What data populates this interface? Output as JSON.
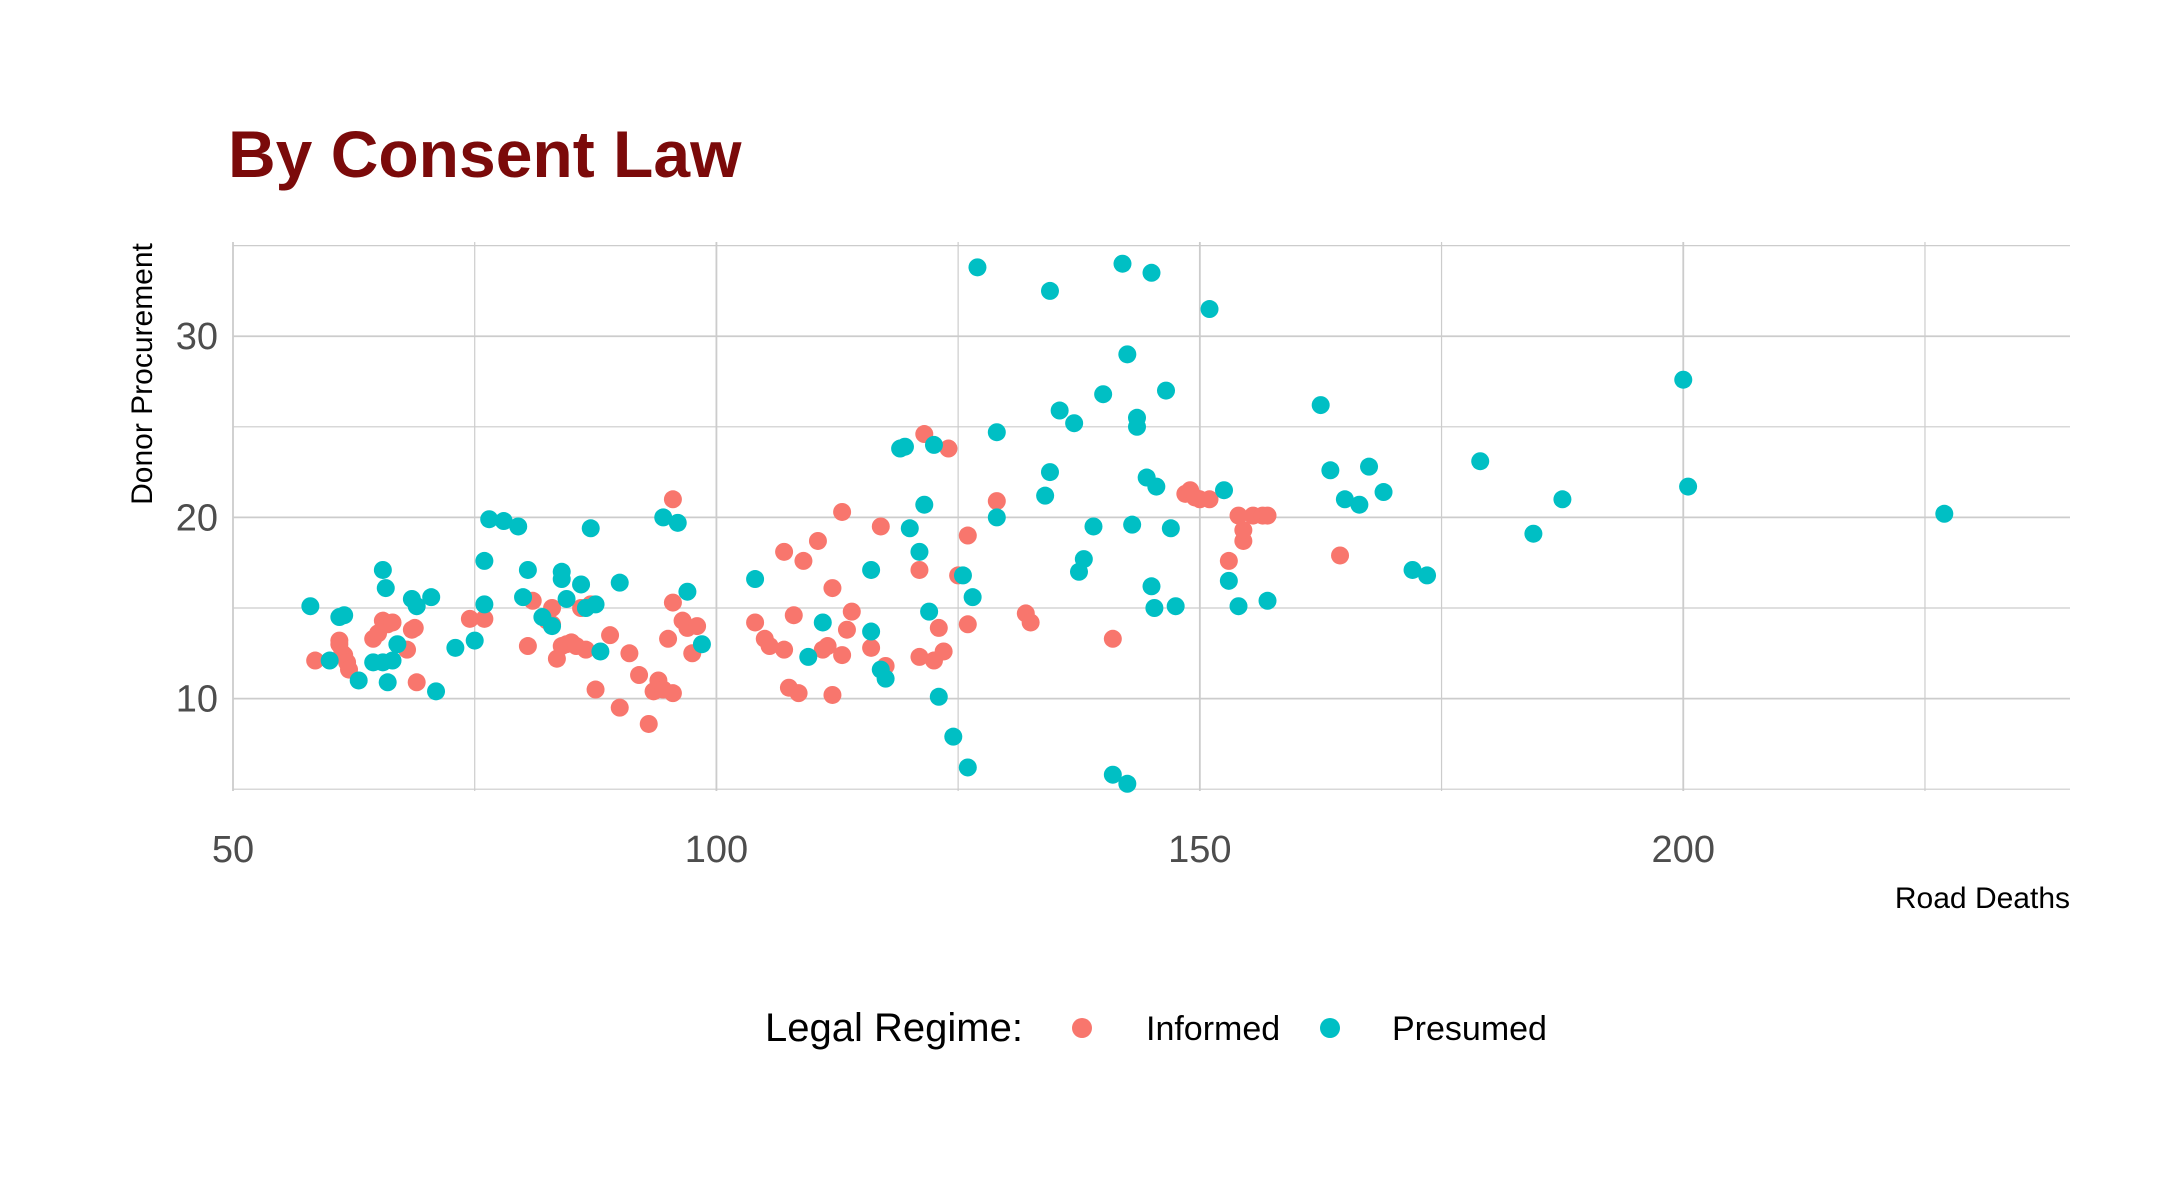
{
  "chart_data": {
    "type": "scatter",
    "title": "By Consent Law",
    "xlabel": "Road Deaths",
    "ylabel": "Donor Procurement",
    "xlim": [
      50,
      240
    ],
    "ylim": [
      4.9,
      35.2
    ],
    "x_major_ticks": [
      50,
      100,
      150,
      200
    ],
    "x_minor_ticks": [
      75,
      125,
      175,
      225
    ],
    "y_major_ticks": [
      10,
      20,
      30
    ],
    "y_minor_ticks": [
      5,
      15,
      25,
      35
    ],
    "grid": true,
    "legend": {
      "title": "Legal Regime:",
      "position": "bottom"
    },
    "colors": {
      "title": "#7b0a0a",
      "grid": "#cccccc",
      "Informed": "#f8766d",
      "Presumed": "#00bfc4"
    },
    "series": [
      {
        "name": "Informed",
        "points": [
          [
            58.5,
            12.1
          ],
          [
            61.0,
            13.0
          ],
          [
            61.0,
            13.2
          ],
          [
            61.3,
            12.5
          ],
          [
            61.5,
            12.4
          ],
          [
            61.8,
            12.0
          ],
          [
            62.0,
            11.6
          ],
          [
            64.5,
            13.3
          ],
          [
            65.0,
            13.6
          ],
          [
            65.5,
            14.3
          ],
          [
            66.0,
            14.1
          ],
          [
            66.5,
            14.2
          ],
          [
            68.0,
            12.7
          ],
          [
            68.5,
            13.8
          ],
          [
            68.8,
            13.9
          ],
          [
            69.0,
            10.9
          ],
          [
            74.5,
            14.4
          ],
          [
            76.0,
            14.4
          ],
          [
            80.5,
            12.9
          ],
          [
            81.0,
            15.4
          ],
          [
            82.5,
            14.3
          ],
          [
            83.0,
            14.1
          ],
          [
            83.0,
            15.0
          ],
          [
            83.5,
            12.2
          ],
          [
            84.0,
            12.9
          ],
          [
            84.5,
            13.0
          ],
          [
            85.0,
            13.1
          ],
          [
            85.5,
            12.9
          ],
          [
            86.0,
            15.0
          ],
          [
            86.5,
            12.7
          ],
          [
            87.0,
            15.2
          ],
          [
            87.5,
            10.5
          ],
          [
            89.0,
            13.5
          ],
          [
            90.0,
            9.5
          ],
          [
            91.0,
            12.5
          ],
          [
            92.0,
            11.3
          ],
          [
            93.0,
            8.6
          ],
          [
            93.5,
            10.4
          ],
          [
            94.0,
            11.0
          ],
          [
            94.5,
            10.5
          ],
          [
            95.0,
            13.3
          ],
          [
            95.5,
            15.3
          ],
          [
            95.5,
            21.0
          ],
          [
            95.5,
            10.3
          ],
          [
            96.5,
            14.3
          ],
          [
            97.0,
            13.9
          ],
          [
            97.5,
            12.5
          ],
          [
            98.0,
            14.0
          ],
          [
            104.0,
            14.2
          ],
          [
            105.0,
            13.3
          ],
          [
            105.5,
            12.9
          ],
          [
            107.0,
            12.7
          ],
          [
            107.5,
            10.6
          ],
          [
            108.0,
            14.6
          ],
          [
            108.5,
            10.3
          ],
          [
            107.0,
            18.1
          ],
          [
            109.0,
            17.6
          ],
          [
            110.5,
            18.7
          ],
          [
            111.0,
            12.7
          ],
          [
            111.5,
            12.9
          ],
          [
            112.0,
            16.1
          ],
          [
            112.0,
            10.2
          ],
          [
            113.0,
            20.3
          ],
          [
            113.0,
            12.4
          ],
          [
            113.5,
            13.8
          ],
          [
            114.0,
            14.8
          ],
          [
            116.0,
            12.8
          ],
          [
            117.0,
            19.5
          ],
          [
            117.5,
            11.8
          ],
          [
            121.0,
            17.1
          ],
          [
            121.0,
            12.3
          ],
          [
            121.5,
            24.6
          ],
          [
            122.5,
            12.1
          ],
          [
            123.0,
            13.9
          ],
          [
            123.5,
            12.6
          ],
          [
            124.0,
            23.8
          ],
          [
            125.0,
            16.8
          ],
          [
            126.0,
            19.0
          ],
          [
            126.0,
            14.1
          ],
          [
            129.0,
            20.9
          ],
          [
            132.0,
            14.7
          ],
          [
            132.5,
            14.2
          ],
          [
            141.0,
            13.3
          ],
          [
            148.5,
            21.3
          ],
          [
            149.0,
            21.5
          ],
          [
            149.5,
            21.1
          ],
          [
            150.0,
            21.0
          ],
          [
            151.0,
            21.0
          ],
          [
            153.0,
            17.6
          ],
          [
            154.0,
            20.1
          ],
          [
            154.5,
            18.7
          ],
          [
            154.5,
            19.3
          ],
          [
            155.5,
            20.1
          ],
          [
            156.5,
            20.1
          ],
          [
            157.0,
            20.1
          ],
          [
            164.5,
            17.9
          ]
        ]
      },
      {
        "name": "Presumed",
        "points": [
          [
            58.0,
            15.1
          ],
          [
            60.0,
            12.1
          ],
          [
            61.0,
            14.5
          ],
          [
            61.5,
            14.6
          ],
          [
            63.0,
            11.0
          ],
          [
            64.5,
            12.0
          ],
          [
            65.5,
            17.1
          ],
          [
            65.8,
            16.1
          ],
          [
            65.5,
            12.0
          ],
          [
            66.0,
            10.9
          ],
          [
            66.5,
            12.1
          ],
          [
            67.0,
            13.0
          ],
          [
            68.5,
            15.5
          ],
          [
            69.0,
            15.1
          ],
          [
            70.5,
            15.6
          ],
          [
            71.0,
            10.4
          ],
          [
            73.0,
            12.8
          ],
          [
            75.0,
            13.2
          ],
          [
            76.0,
            17.6
          ],
          [
            76.0,
            15.2
          ],
          [
            76.5,
            19.9
          ],
          [
            78.0,
            19.8
          ],
          [
            79.5,
            19.5
          ],
          [
            80.5,
            17.1
          ],
          [
            80.0,
            15.6
          ],
          [
            82.0,
            14.5
          ],
          [
            83.0,
            14.0
          ],
          [
            84.0,
            17.0
          ],
          [
            84.0,
            16.6
          ],
          [
            84.5,
            15.5
          ],
          [
            86.0,
            16.3
          ],
          [
            86.5,
            15.0
          ],
          [
            87.0,
            19.4
          ],
          [
            87.5,
            15.2
          ],
          [
            88.0,
            12.6
          ],
          [
            90.0,
            16.4
          ],
          [
            94.5,
            20.0
          ],
          [
            96.0,
            19.7
          ],
          [
            97.0,
            15.9
          ],
          [
            98.5,
            13.0
          ],
          [
            104.0,
            16.6
          ],
          [
            109.5,
            12.3
          ],
          [
            111.0,
            14.2
          ],
          [
            116.0,
            17.1
          ],
          [
            116.0,
            13.7
          ],
          [
            117.0,
            11.6
          ],
          [
            117.5,
            11.1
          ],
          [
            119.0,
            23.8
          ],
          [
            119.5,
            23.9
          ],
          [
            120.0,
            19.4
          ],
          [
            121.0,
            18.1
          ],
          [
            121.5,
            20.7
          ],
          [
            122.0,
            14.8
          ],
          [
            122.5,
            24.0
          ],
          [
            123.0,
            10.1
          ],
          [
            124.5,
            7.9
          ],
          [
            125.5,
            16.8
          ],
          [
            126.0,
            6.2
          ],
          [
            126.5,
            15.6
          ],
          [
            127.0,
            33.8
          ],
          [
            129.0,
            24.7
          ],
          [
            129.0,
            20.0
          ],
          [
            134.0,
            21.2
          ],
          [
            134.5,
            22.5
          ],
          [
            134.5,
            32.5
          ],
          [
            135.5,
            25.9
          ],
          [
            137.0,
            25.2
          ],
          [
            137.5,
            17.0
          ],
          [
            138.0,
            17.7
          ],
          [
            139.0,
            19.5
          ],
          [
            140.0,
            26.8
          ],
          [
            141.0,
            5.8
          ],
          [
            142.0,
            34.0
          ],
          [
            142.5,
            29.0
          ],
          [
            142.5,
            5.3
          ],
          [
            143.0,
            19.6
          ],
          [
            143.5,
            25.5
          ],
          [
            143.5,
            25.0
          ],
          [
            144.5,
            22.2
          ],
          [
            145.0,
            33.5
          ],
          [
            145.0,
            16.2
          ],
          [
            145.3,
            15.0
          ],
          [
            145.5,
            21.7
          ],
          [
            146.5,
            27.0
          ],
          [
            147.0,
            19.4
          ],
          [
            147.5,
            15.1
          ],
          [
            151.0,
            31.5
          ],
          [
            152.5,
            21.5
          ],
          [
            153.0,
            16.5
          ],
          [
            154.0,
            15.1
          ],
          [
            157.0,
            15.4
          ],
          [
            162.5,
            26.2
          ],
          [
            163.5,
            22.6
          ],
          [
            165.0,
            21.0
          ],
          [
            166.5,
            20.7
          ],
          [
            167.5,
            22.8
          ],
          [
            169.0,
            21.4
          ],
          [
            172.0,
            17.1
          ],
          [
            173.5,
            16.8
          ],
          [
            179.0,
            23.1
          ],
          [
            184.5,
            19.1
          ],
          [
            187.5,
            21.0
          ],
          [
            200.0,
            27.6
          ],
          [
            200.5,
            21.7
          ],
          [
            227.0,
            20.2
          ]
        ]
      }
    ]
  }
}
